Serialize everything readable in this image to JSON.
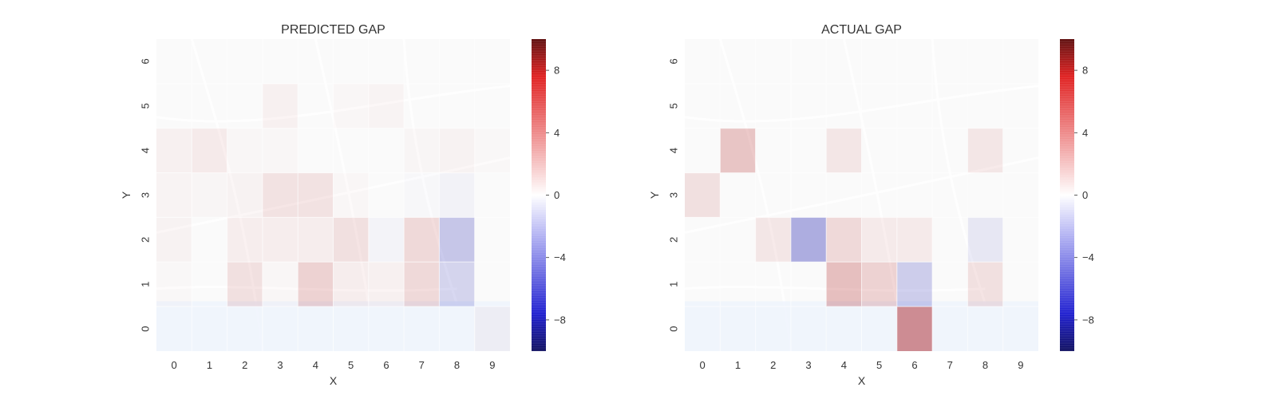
{
  "colors": {
    "map_background": "#f3f3f3",
    "map_roads": "#ffffff",
    "water": "#dbe7fa",
    "grid_line": "#ffffff",
    "cmap_negative": "#1515b0",
    "cmap_neutral": "#ffffff",
    "cmap_positive": "#b01010",
    "text": "#333333"
  },
  "chart_data": [
    {
      "type": "heatmap",
      "title": "PREDICTED GAP",
      "xlabel": "X",
      "ylabel": "Y",
      "x_ticks": [
        "0",
        "1",
        "2",
        "3",
        "4",
        "5",
        "6",
        "7",
        "8",
        "9"
      ],
      "y_ticks": [
        "0",
        "1",
        "2",
        "3",
        "4",
        "5",
        "6"
      ],
      "grid": true,
      "background": "street map",
      "vmin": -10,
      "vmax": 10,
      "colorbar_ticks": [
        "8",
        "4",
        "0",
        "−4",
        "−8"
      ],
      "colorbar_tick_values": [
        8,
        4,
        0,
        -4,
        -8
      ],
      "rows_y": [
        6,
        5,
        4,
        3,
        2,
        1,
        0
      ],
      "values": [
        [
          0,
          0,
          0,
          0,
          0,
          0,
          0,
          0,
          0,
          0
        ],
        [
          0,
          0,
          0,
          0.8,
          0,
          0.3,
          0.5,
          0,
          0,
          0
        ],
        [
          0.8,
          1.2,
          0.3,
          0.3,
          0,
          0,
          0,
          0.4,
          0.6,
          0.2
        ],
        [
          0.5,
          0.4,
          0.6,
          1.8,
          1.8,
          0.3,
          0,
          -0.2,
          -0.6,
          0
        ],
        [
          0.6,
          0,
          1.0,
          1.0,
          1.0,
          2.0,
          -0.5,
          2.5,
          -4.0,
          0
        ],
        [
          0.2,
          0,
          2.0,
          0.3,
          3.0,
          1.0,
          0.8,
          2.5,
          -3.0,
          0
        ],
        [
          0,
          0,
          0,
          0,
          0,
          0,
          0,
          0,
          0,
          0.6
        ]
      ]
    },
    {
      "type": "heatmap",
      "title": "ACTUAL GAP",
      "xlabel": "X",
      "ylabel": "Y",
      "x_ticks": [
        "0",
        "1",
        "2",
        "3",
        "4",
        "5",
        "6",
        "7",
        "8",
        "9"
      ],
      "y_ticks": [
        "0",
        "1",
        "2",
        "3",
        "4",
        "5",
        "6"
      ],
      "grid": true,
      "background": "street map",
      "vmin": -10,
      "vmax": 10,
      "colorbar_ticks": [
        "8",
        "4",
        "0",
        "−4",
        "−8"
      ],
      "colorbar_tick_values": [
        8,
        4,
        0,
        -4,
        -8
      ],
      "rows_y": [
        6,
        5,
        4,
        3,
        2,
        1,
        0
      ],
      "values": [
        [
          0,
          0,
          0,
          0,
          0,
          0,
          0,
          0,
          0,
          0
        ],
        [
          0,
          0,
          0,
          0,
          0,
          0,
          0,
          0,
          0,
          0
        ],
        [
          0,
          4.0,
          0,
          0,
          1.5,
          0,
          0,
          0,
          1.5,
          0
        ],
        [
          2.0,
          0,
          0,
          0,
          0,
          0,
          0,
          0,
          0,
          0
        ],
        [
          0,
          0,
          1.5,
          -6.0,
          2.5,
          1.2,
          1.2,
          0,
          -1.5,
          0
        ],
        [
          0,
          0,
          0,
          0,
          4.5,
          3.0,
          -3.5,
          0,
          2.0,
          0
        ],
        [
          0,
          0,
          0,
          0,
          0,
          0,
          8.0,
          0,
          0,
          0
        ]
      ]
    }
  ]
}
